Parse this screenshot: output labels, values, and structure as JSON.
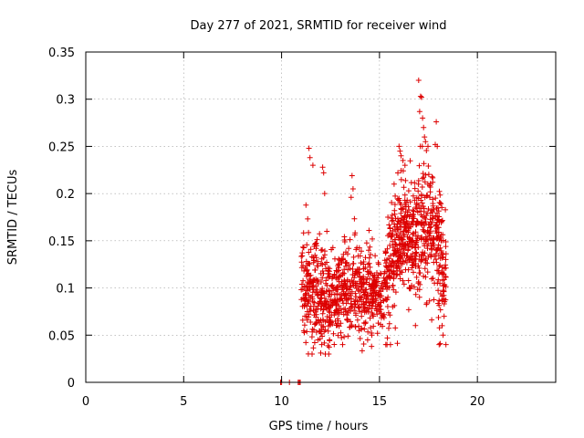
{
  "chart_data": {
    "type": "scatter",
    "title": "Day 277 of 2021, SRMTID for receiver wind",
    "xlabel": "GPS time / hours",
    "ylabel": "SRMTID / TECUs",
    "xlim": [
      0,
      24
    ],
    "ylim": [
      0,
      0.35
    ],
    "xticks": [
      0,
      5,
      10,
      15,
      20
    ],
    "xtick_labels": [
      "0",
      "5",
      "10",
      "15",
      "20"
    ],
    "yticks": [
      0,
      0.05,
      0.1,
      0.15,
      0.2,
      0.25,
      0.3,
      0.35
    ],
    "ytick_labels": [
      "0",
      "0.05",
      "0.1",
      "0.15",
      "0.2",
      "0.25",
      "0.3",
      "0.35"
    ],
    "grid": true,
    "marker": "+",
    "series_color": "#dd0000",
    "zero_points": [
      {
        "x": 9.95,
        "y": 0
      },
      {
        "x": 10.0,
        "y": 0
      },
      {
        "x": 10.4,
        "y": 0
      },
      {
        "x": 10.85,
        "y": 0
      },
      {
        "x": 10.9,
        "y": 0
      },
      {
        "x": 10.95,
        "y": 0
      }
    ],
    "cluster_a": {
      "x_start": 11.0,
      "x_end": 15.25,
      "count": 720,
      "baseline": [
        [
          11.0,
          0.11
        ],
        [
          11.5,
          0.095
        ],
        [
          12.0,
          0.085
        ],
        [
          12.5,
          0.09
        ],
        [
          13.0,
          0.095
        ],
        [
          13.5,
          0.1
        ],
        [
          14.0,
          0.1
        ],
        [
          14.5,
          0.095
        ],
        [
          15.0,
          0.09
        ],
        [
          15.25,
          0.085
        ]
      ],
      "spread": [
        [
          11.0,
          0.05
        ],
        [
          11.5,
          0.06
        ],
        [
          12.0,
          0.055
        ],
        [
          12.5,
          0.045
        ],
        [
          13.0,
          0.05
        ],
        [
          13.5,
          0.05
        ],
        [
          14.0,
          0.04
        ],
        [
          14.5,
          0.04
        ],
        [
          15.0,
          0.035
        ],
        [
          15.25,
          0.03
        ]
      ],
      "y_min": 0.03,
      "y_max": 0.25
    },
    "cluster_b": {
      "x_start": 15.25,
      "x_end": 18.4,
      "count": 620,
      "baseline": [
        [
          15.25,
          0.1
        ],
        [
          15.75,
          0.14
        ],
        [
          16.25,
          0.16
        ],
        [
          16.75,
          0.15
        ],
        [
          17.25,
          0.17
        ],
        [
          17.75,
          0.16
        ],
        [
          18.1,
          0.14
        ],
        [
          18.4,
          0.1
        ]
      ],
      "spread": [
        [
          15.25,
          0.05
        ],
        [
          15.75,
          0.06
        ],
        [
          16.25,
          0.05
        ],
        [
          16.75,
          0.05
        ],
        [
          17.25,
          0.07
        ],
        [
          17.75,
          0.06
        ],
        [
          18.1,
          0.06
        ],
        [
          18.4,
          0.05
        ]
      ],
      "y_min": 0.04,
      "y_max": 0.25
    },
    "highlights": [
      {
        "x": 11.4,
        "y": 0.248
      },
      {
        "x": 11.45,
        "y": 0.238
      },
      {
        "x": 11.6,
        "y": 0.23
      },
      {
        "x": 12.1,
        "y": 0.228
      },
      {
        "x": 12.15,
        "y": 0.222
      },
      {
        "x": 12.2,
        "y": 0.2
      },
      {
        "x": 13.6,
        "y": 0.219
      },
      {
        "x": 13.65,
        "y": 0.205
      },
      {
        "x": 13.55,
        "y": 0.196
      },
      {
        "x": 16.0,
        "y": 0.25
      },
      {
        "x": 16.05,
        "y": 0.245
      },
      {
        "x": 16.1,
        "y": 0.24
      },
      {
        "x": 16.2,
        "y": 0.235
      },
      {
        "x": 16.3,
        "y": 0.23
      },
      {
        "x": 17.0,
        "y": 0.32
      },
      {
        "x": 17.1,
        "y": 0.303
      },
      {
        "x": 17.15,
        "y": 0.302
      },
      {
        "x": 17.05,
        "y": 0.287
      },
      {
        "x": 17.2,
        "y": 0.28
      },
      {
        "x": 17.25,
        "y": 0.27
      },
      {
        "x": 17.3,
        "y": 0.26
      },
      {
        "x": 17.35,
        "y": 0.255
      },
      {
        "x": 17.9,
        "y": 0.276
      },
      {
        "x": 17.85,
        "y": 0.252
      },
      {
        "x": 17.95,
        "y": 0.25
      },
      {
        "x": 18.2,
        "y": 0.06
      },
      {
        "x": 18.25,
        "y": 0.05
      },
      {
        "x": 18.1,
        "y": 0.041
      },
      {
        "x": 18.3,
        "y": 0.07
      },
      {
        "x": 12.0,
        "y": 0.031
      },
      {
        "x": 12.05,
        "y": 0.04
      },
      {
        "x": 14.9,
        "y": 0.052
      },
      {
        "x": 15.4,
        "y": 0.047
      }
    ]
  }
}
